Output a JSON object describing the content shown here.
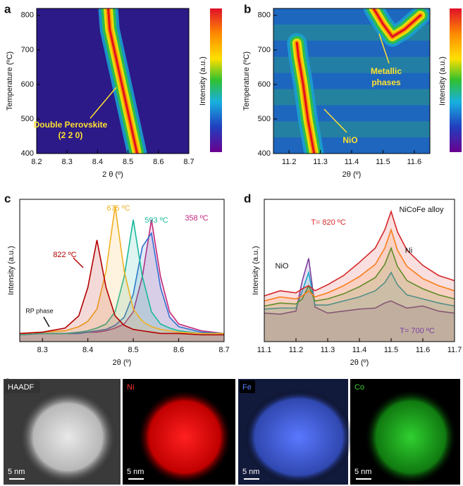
{
  "chart_data": [
    {
      "type": "heatmap",
      "panel": "a",
      "xlabel": "2 θ (º)",
      "ylabel": "Temperature (ºC)",
      "colorbar_label": "Intensity (a.u.)",
      "xlim": [
        8.2,
        8.7
      ],
      "xticks": [
        8.2,
        8.3,
        8.4,
        8.5,
        8.6,
        8.7
      ],
      "ylim": [
        400,
        820
      ],
      "yticks": [
        400,
        500,
        600,
        700,
        800
      ],
      "background": "#2b1a87",
      "ridges": [
        {
          "x": [
            8.53,
            8.505,
            8.48,
            8.455,
            8.44,
            8.435
          ],
          "y": [
            400,
            500,
            600,
            700,
            760,
            820
          ]
        }
      ],
      "annotations": [
        {
          "text": "Double Perovskite"
        },
        {
          "text": "(2 2 0)"
        }
      ]
    },
    {
      "type": "heatmap",
      "panel": "b",
      "xlabel": "2θ (º)",
      "ylabel": "Temperature (ºC)",
      "colorbar_label": "Intensity (a.u.)",
      "xlim": [
        11.15,
        11.65
      ],
      "xticks": [
        11.2,
        11.3,
        11.4,
        11.5,
        11.6
      ],
      "ylim": [
        400,
        820
      ],
      "yticks": [
        400,
        500,
        600,
        700,
        800
      ],
      "background": "#1f6fc4",
      "ridges": [
        {
          "x": [
            11.28,
            11.26,
            11.245,
            11.23,
            11.225
          ],
          "y": [
            400,
            500,
            600,
            680,
            720
          ]
        },
        {
          "x": [
            11.47,
            11.5,
            11.53,
            11.57,
            11.62
          ],
          "y": [
            820,
            775,
            738,
            760,
            800
          ]
        }
      ],
      "annotations": [
        {
          "text": "Metallic"
        },
        {
          "text": "phases"
        },
        {
          "text": "NiO"
        }
      ]
    },
    {
      "type": "line",
      "panel": "c",
      "xlabel": "2θ (º)",
      "ylabel": "Intensity (a.u.)",
      "xlim": [
        8.25,
        8.7
      ],
      "xticks": [
        8.3,
        8.4,
        8.5,
        8.6,
        8.7
      ],
      "ylim": [
        0,
        105
      ],
      "x": [
        8.25,
        8.3,
        8.35,
        8.38,
        8.4,
        8.42,
        8.44,
        8.46,
        8.48,
        8.5,
        8.52,
        8.54,
        8.56,
        8.58,
        8.6,
        8.65,
        8.7
      ],
      "series": [
        {
          "color": "#c0287a",
          "values": [
            5,
            6,
            6,
            6,
            7,
            7,
            8,
            10,
            13,
            22,
            48,
            90,
            48,
            22,
            13,
            8,
            6
          ]
        },
        {
          "color": "#2f6fd0",
          "values": [
            5,
            6,
            6,
            6,
            7,
            8,
            9,
            12,
            18,
            35,
            70,
            80,
            40,
            18,
            11,
            7,
            6
          ]
        },
        {
          "color": "#19b89a",
          "values": [
            5,
            6,
            6,
            7,
            8,
            10,
            13,
            22,
            48,
            90,
            48,
            22,
            13,
            10,
            8,
            6,
            6
          ]
        },
        {
          "color": "#f0b020",
          "values": [
            6,
            7,
            8,
            11,
            15,
            24,
            52,
            100,
            52,
            24,
            15,
            11,
            9,
            8,
            7,
            6,
            6
          ]
        },
        {
          "color": "#b30000",
          "values": [
            6,
            7,
            10,
            19,
            40,
            75,
            40,
            19,
            12,
            9,
            8,
            7,
            6,
            6,
            6,
            5,
            5
          ]
        }
      ],
      "annotations": [
        {
          "text": "822 ºC"
        },
        {
          "text": "675 ºC"
        },
        {
          "text": "593 ºC"
        },
        {
          "text": "358 ºC"
        },
        {
          "text": "RP phase"
        }
      ]
    },
    {
      "type": "line",
      "panel": "d",
      "xlabel": "2θ (º)",
      "ylabel": "Intensity (a.u.)",
      "xlim": [
        11.1,
        11.7
      ],
      "xticks": [
        11.1,
        11.2,
        11.3,
        11.4,
        11.5,
        11.6,
        11.7
      ],
      "ylim": [
        0,
        140
      ],
      "x": [
        11.1,
        11.15,
        11.2,
        11.22,
        11.24,
        11.26,
        11.3,
        11.35,
        11.4,
        11.45,
        11.48,
        11.5,
        11.52,
        11.55,
        11.6,
        11.65,
        11.7
      ],
      "series": [
        {
          "color": "#7b3fa0",
          "values": [
            28,
            27,
            30,
            60,
            82,
            34,
            28,
            30,
            32,
            33,
            38,
            40,
            37,
            33,
            35,
            30,
            28
          ]
        },
        {
          "color": "#17a6c8",
          "values": [
            32,
            33,
            33,
            50,
            68,
            36,
            36,
            40,
            44,
            50,
            58,
            68,
            56,
            46,
            42,
            38,
            35
          ]
        },
        {
          "color": "#2ca02c",
          "values": [
            35,
            38,
            37,
            42,
            55,
            40,
            42,
            47,
            54,
            63,
            76,
            92,
            74,
            60,
            52,
            46,
            42
          ]
        },
        {
          "color": "#ff8c1a",
          "values": [
            40,
            44,
            42,
            45,
            50,
            44,
            48,
            55,
            64,
            76,
            92,
            110,
            90,
            74,
            62,
            55,
            50
          ]
        },
        {
          "color": "#d62728",
          "values": [
            45,
            50,
            48,
            52,
            55,
            50,
            56,
            65,
            78,
            92,
            110,
            128,
            108,
            90,
            75,
            65,
            60
          ]
        }
      ],
      "annotations": [
        {
          "text": "NiO"
        },
        {
          "text": "NiCoFe alloy"
        },
        {
          "text": "Ni"
        },
        {
          "text": "T= 820 ºC"
        },
        {
          "text": "T= 700 ºC"
        }
      ]
    }
  ],
  "figure_panel_e": {
    "panel": "e",
    "tiles": [
      {
        "label": "HAADF",
        "scale_bar": "5 nm"
      },
      {
        "label": "Ni",
        "scale_bar": "5 nm"
      },
      {
        "label": "Fe",
        "scale_bar": "5 nm"
      },
      {
        "label": "Co",
        "scale_bar": "5 nm"
      }
    ]
  }
}
